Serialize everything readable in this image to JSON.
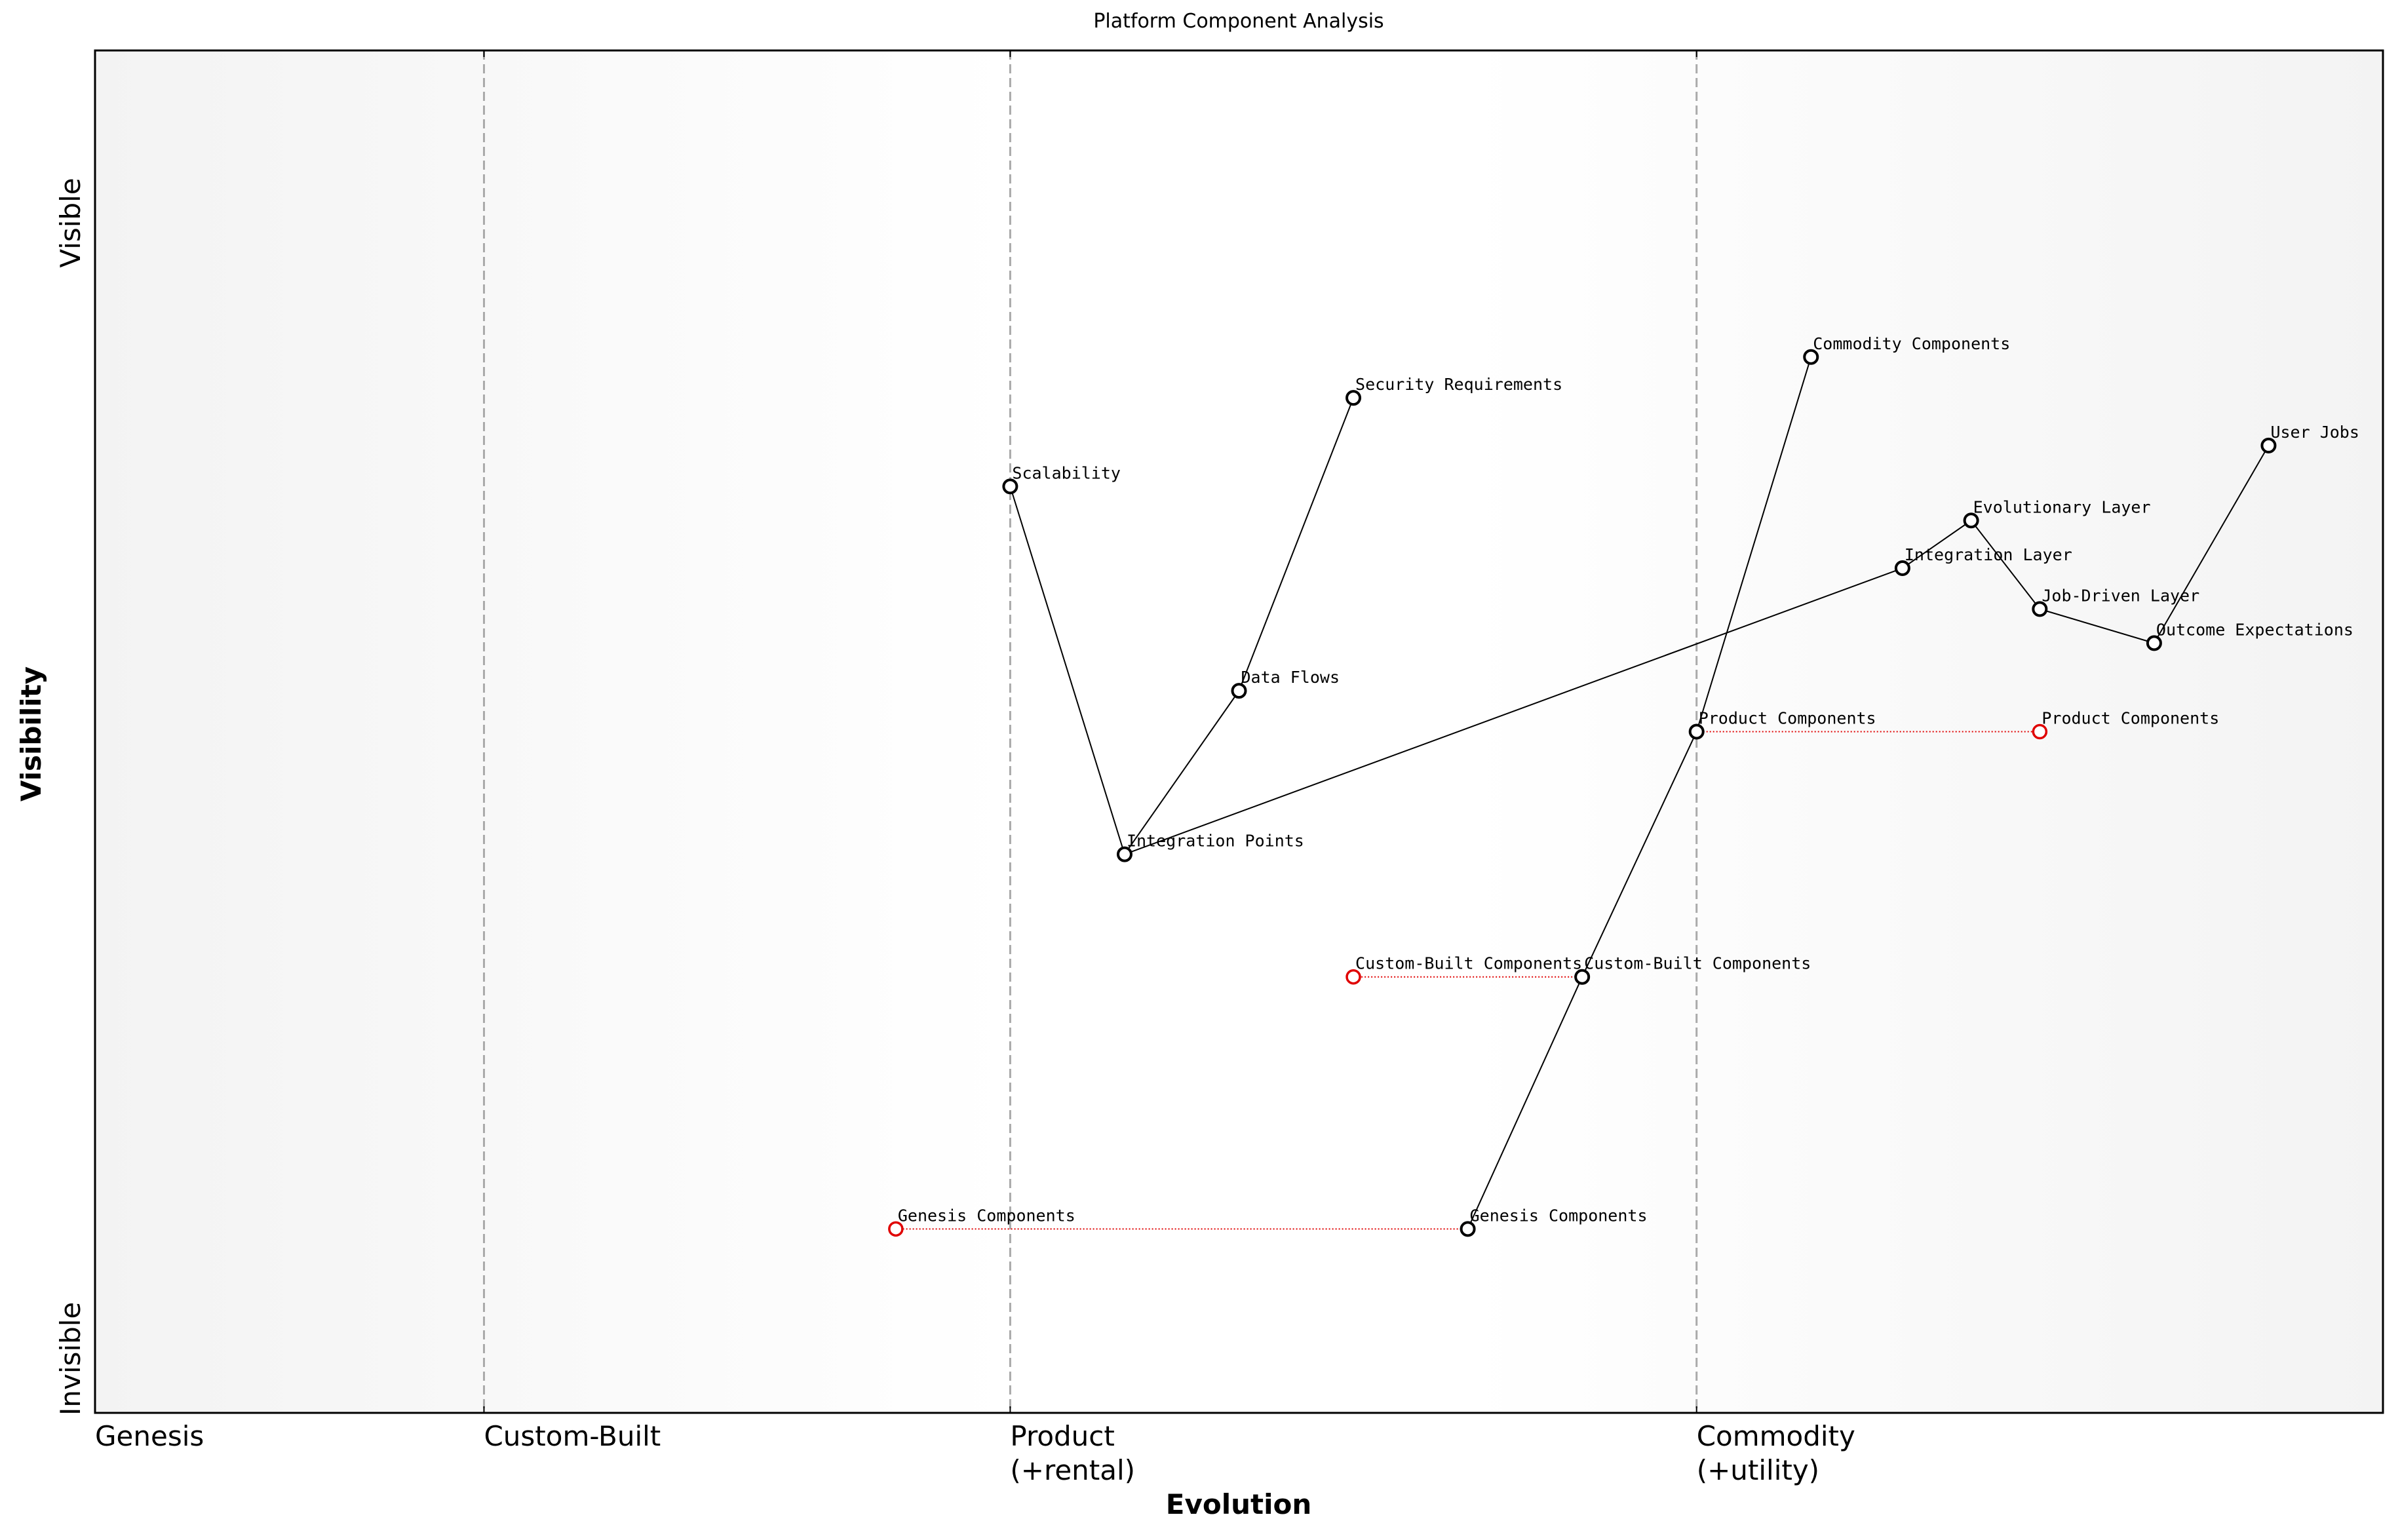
{
  "chart_data": {
    "type": "wardley",
    "title": "Platform Component Analysis",
    "x_label": "Evolution",
    "y_label": "Visibility",
    "xlim": [
      0,
      1
    ],
    "ylim": [
      0,
      1
    ],
    "xticks": [
      {
        "value": 0,
        "label": "Genesis"
      },
      {
        "value": 0.17,
        "label": "Custom-Built"
      },
      {
        "value": 0.4,
        "label": "Product\n(+rental)"
      },
      {
        "value": 0.7,
        "label": "Commodity\n(+utility)"
      }
    ],
    "stage_lines": [
      0.17,
      0.4,
      0.7
    ],
    "y_end_labels": [
      "Visible",
      "Invisible"
    ],
    "components": [
      {
        "name": "Scalability",
        "evolution": 0.4,
        "visibility": 0.68
      },
      {
        "name": "Security Requirements",
        "evolution": 0.55,
        "visibility": 0.745
      },
      {
        "name": "Data Flows",
        "evolution": 0.5,
        "visibility": 0.53
      },
      {
        "name": "Integration Points",
        "evolution": 0.45,
        "visibility": 0.41
      },
      {
        "name": "Commodity Components",
        "evolution": 0.75,
        "visibility": 0.775
      },
      {
        "name": "User Jobs",
        "evolution": 0.95,
        "visibility": 0.71
      },
      {
        "name": "Evolutionary Layer",
        "evolution": 0.82,
        "visibility": 0.655
      },
      {
        "name": "Integration Layer",
        "evolution": 0.79,
        "visibility": 0.62
      },
      {
        "name": "Job-Driven Layer",
        "evolution": 0.85,
        "visibility": 0.59
      },
      {
        "name": "Outcome Expectations",
        "evolution": 0.9,
        "visibility": 0.565
      },
      {
        "name": "Product Components",
        "evolution": 0.7,
        "visibility": 0.5
      },
      {
        "name": "Custom-Built Components",
        "evolution": 0.65,
        "visibility": 0.32
      },
      {
        "name": "Genesis Components",
        "evolution": 0.6,
        "visibility": 0.135
      }
    ],
    "links": [
      [
        "Scalability",
        "Integration Points"
      ],
      [
        "Integration Points",
        "Data Flows"
      ],
      [
        "Data Flows",
        "Security Requirements"
      ],
      [
        "Integration Points",
        "Integration Layer"
      ],
      [
        "Integration Layer",
        "Evolutionary Layer"
      ],
      [
        "Evolutionary Layer",
        "Job-Driven Layer"
      ],
      [
        "Job-Driven Layer",
        "Outcome Expectations"
      ],
      [
        "Outcome Expectations",
        "User Jobs"
      ],
      [
        "Commodity Components",
        "Product Components"
      ],
      [
        "Product Components",
        "Custom-Built Components"
      ],
      [
        "Custom-Built Components",
        "Genesis Components"
      ]
    ],
    "evolve": [
      {
        "name": "Product Components",
        "evolution": 0.85
      },
      {
        "name": "Custom-Built Components",
        "evolution": 0.55
      },
      {
        "name": "Genesis Components",
        "evolution": 0.35
      }
    ],
    "color": "#000000",
    "evolve_color": "#e00000"
  }
}
